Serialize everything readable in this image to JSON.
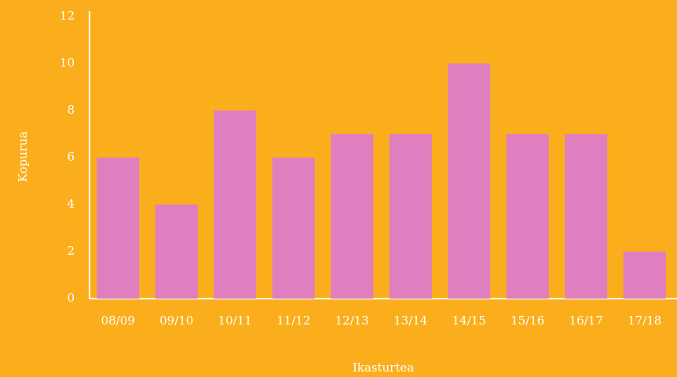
{
  "chart_data": {
    "type": "bar",
    "x_label": "Ikasturtea",
    "y_label": "Kopurua",
    "categories": [
      "08/09",
      "09/10",
      "10/11",
      "11/12",
      "12/13",
      "13/14",
      "14/15",
      "15/16",
      "16/17",
      "17/18"
    ],
    "values": [
      6,
      4,
      8,
      6,
      7,
      7,
      10,
      7,
      7,
      2
    ],
    "color": "#e07fbf",
    "ylim": [
      0,
      12
    ],
    "yticks": [
      0,
      2,
      4,
      6,
      8,
      10,
      12
    ],
    "grid": false
  }
}
